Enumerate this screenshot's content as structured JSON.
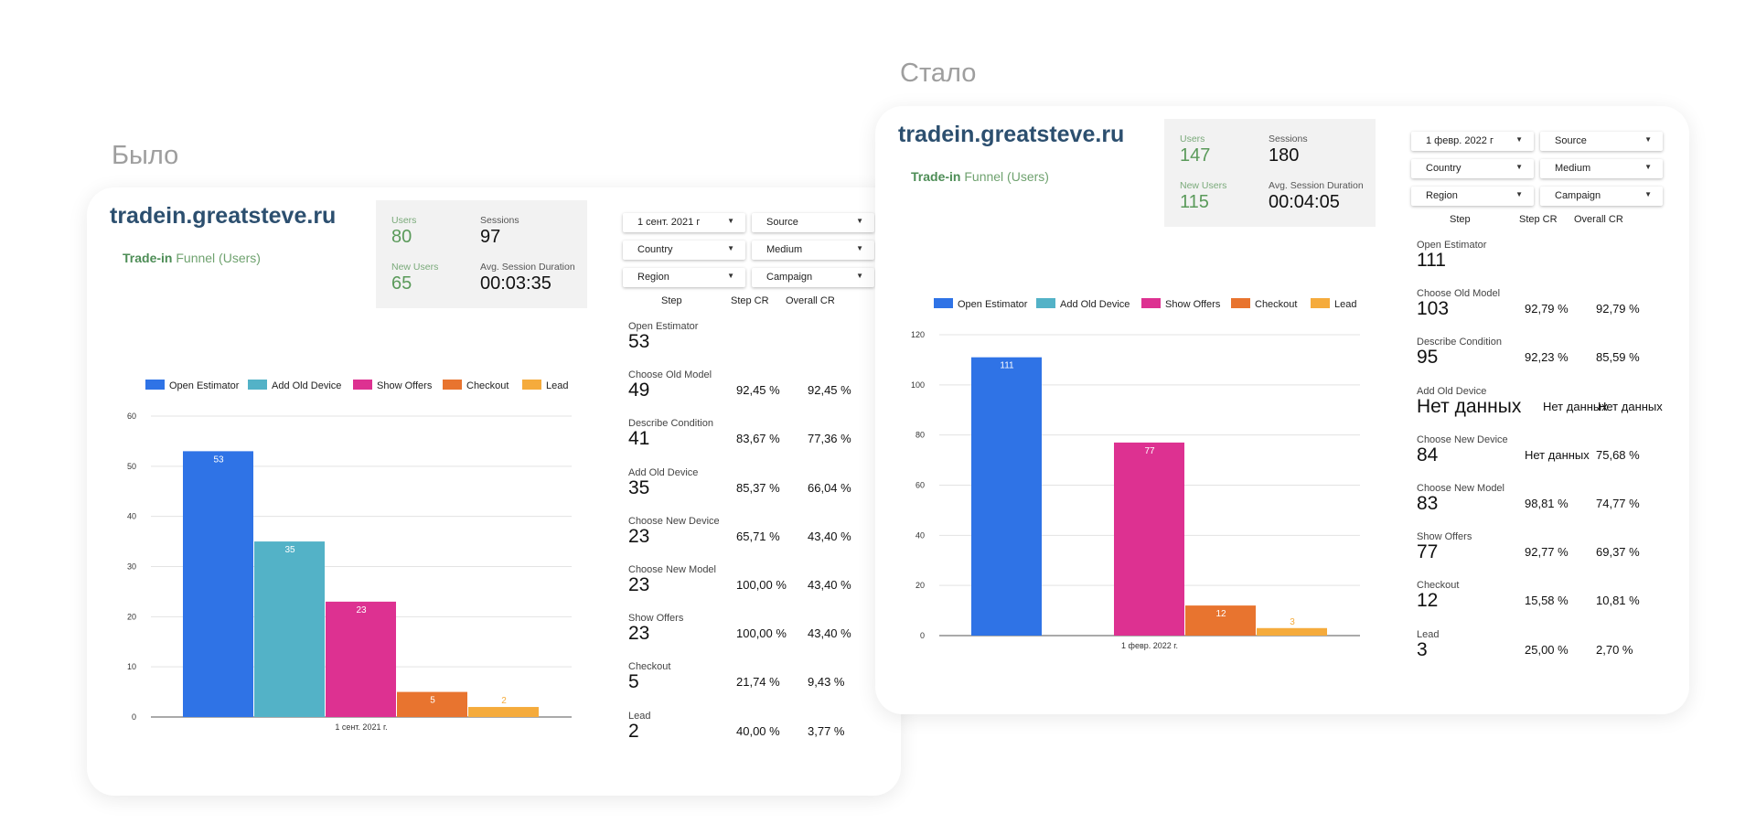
{
  "labels": {
    "before": "Было",
    "after": "Стало"
  },
  "colors": {
    "open_estimator": "#2f73e6",
    "add_old_device": "#53b2c7",
    "show_offers": "#dd3191",
    "checkout": "#e8742f",
    "lead": "#f5ab3c"
  },
  "before": {
    "site_title": "tradein.greatsteve.ru",
    "funnel_title_bold": "Trade-in",
    "funnel_title_rest": " Funnel (Users)",
    "stats": {
      "users_label": "Users",
      "users_value": "80",
      "sessions_label": "Sessions",
      "sessions_value": "97",
      "new_users_label": "New Users",
      "new_users_value": "65",
      "duration_label": "Avg. Session Duration",
      "duration_value": "00:03:35"
    },
    "filters": [
      "1 сент. 2021 г",
      "Source",
      "Country",
      "Medium",
      "Region",
      "Campaign"
    ],
    "table_headers": [
      "Step",
      "Step CR",
      "Overall CR"
    ],
    "steps": [
      {
        "name": "Open Estimator",
        "value": "53",
        "step_cr": "",
        "overall_cr": ""
      },
      {
        "name": "Choose Old Model",
        "value": "49",
        "step_cr": "92,45 %",
        "overall_cr": "92,45 %"
      },
      {
        "name": "Describe Condition",
        "value": "41",
        "step_cr": "83,67 %",
        "overall_cr": "77,36 %"
      },
      {
        "name": "Add Old Device",
        "value": "35",
        "step_cr": "85,37 %",
        "overall_cr": "66,04 %"
      },
      {
        "name": "Choose New Device",
        "value": "23",
        "step_cr": "65,71 %",
        "overall_cr": "43,40 %"
      },
      {
        "name": "Choose New Model",
        "value": "23",
        "step_cr": "100,00 %",
        "overall_cr": "43,40 %"
      },
      {
        "name": "Show Offers",
        "value": "23",
        "step_cr": "100,00 %",
        "overall_cr": "43,40 %"
      },
      {
        "name": "Checkout",
        "value": "5",
        "step_cr": "21,74 %",
        "overall_cr": "9,43 %"
      },
      {
        "name": "Lead",
        "value": "2",
        "step_cr": "40,00 %",
        "overall_cr": "3,77 %"
      }
    ]
  },
  "after": {
    "site_title": "tradein.greatsteve.ru",
    "funnel_title_bold": "Trade-in",
    "funnel_title_rest": " Funnel (Users)",
    "stats": {
      "users_label": "Users",
      "users_value": "147",
      "sessions_label": "Sessions",
      "sessions_value": "180",
      "new_users_label": "New Users",
      "new_users_value": "115",
      "duration_label": "Avg. Session Duration",
      "duration_value": "00:04:05"
    },
    "filters": [
      "1 февр. 2022 г",
      "Source",
      "Country",
      "Medium",
      "Region",
      "Campaign"
    ],
    "table_headers": [
      "Step",
      "Step CR",
      "Overall CR"
    ],
    "steps": [
      {
        "name": "Open Estimator",
        "value": "111",
        "step_cr": "",
        "overall_cr": ""
      },
      {
        "name": "Choose Old Model",
        "value": "103",
        "step_cr": "92,79 %",
        "overall_cr": "92,79 %"
      },
      {
        "name": "Describe Condition",
        "value": "95",
        "step_cr": "92,23 %",
        "overall_cr": "85,59 %"
      },
      {
        "name": "Add Old Device",
        "value": "Нет данных",
        "step_cr": "Нет данных",
        "overall_cr": "Нет данных"
      },
      {
        "name": "Choose New Device",
        "value": "84",
        "step_cr": "Нет данных",
        "overall_cr": "75,68 %"
      },
      {
        "name": "Choose New Model",
        "value": "83",
        "step_cr": "98,81 %",
        "overall_cr": "74,77 %"
      },
      {
        "name": "Show Offers",
        "value": "77",
        "step_cr": "92,77 %",
        "overall_cr": "69,37 %"
      },
      {
        "name": "Checkout",
        "value": "12",
        "step_cr": "15,58 %",
        "overall_cr": "10,81 %"
      },
      {
        "name": "Lead",
        "value": "3",
        "step_cr": "25,00 %",
        "overall_cr": "2,70 %"
      }
    ]
  },
  "chart_data": [
    {
      "type": "bar",
      "categories": [
        "1 сент. 2021 г."
      ],
      "series": [
        {
          "name": "Open Estimator",
          "values": [
            53
          ],
          "color": "#2f73e6"
        },
        {
          "name": "Add Old Device",
          "values": [
            35
          ],
          "color": "#53b2c7"
        },
        {
          "name": "Show Offers",
          "values": [
            23
          ],
          "color": "#dd3191"
        },
        {
          "name": "Checkout",
          "values": [
            5
          ],
          "color": "#e8742f"
        },
        {
          "name": "Lead",
          "values": [
            2
          ],
          "color": "#f5ab3c"
        }
      ],
      "ylim": [
        0,
        60
      ],
      "yticks": [
        0,
        10,
        20,
        30,
        40,
        50,
        60
      ],
      "grid": true,
      "legend": "top-left"
    },
    {
      "type": "bar",
      "categories": [
        "1 февр. 2022 г."
      ],
      "series": [
        {
          "name": "Open Estimator",
          "values": [
            111
          ],
          "color": "#2f73e6"
        },
        {
          "name": "Add Old Device",
          "values": [
            null
          ],
          "color": "#53b2c7"
        },
        {
          "name": "Show Offers",
          "values": [
            77
          ],
          "color": "#dd3191"
        },
        {
          "name": "Checkout",
          "values": [
            12
          ],
          "color": "#e8742f"
        },
        {
          "name": "Lead",
          "values": [
            3
          ],
          "color": "#f5ab3c"
        }
      ],
      "ylim": [
        0,
        120
      ],
      "yticks": [
        0,
        20,
        40,
        60,
        80,
        100,
        120
      ],
      "grid": true,
      "legend": "top-left"
    }
  ]
}
